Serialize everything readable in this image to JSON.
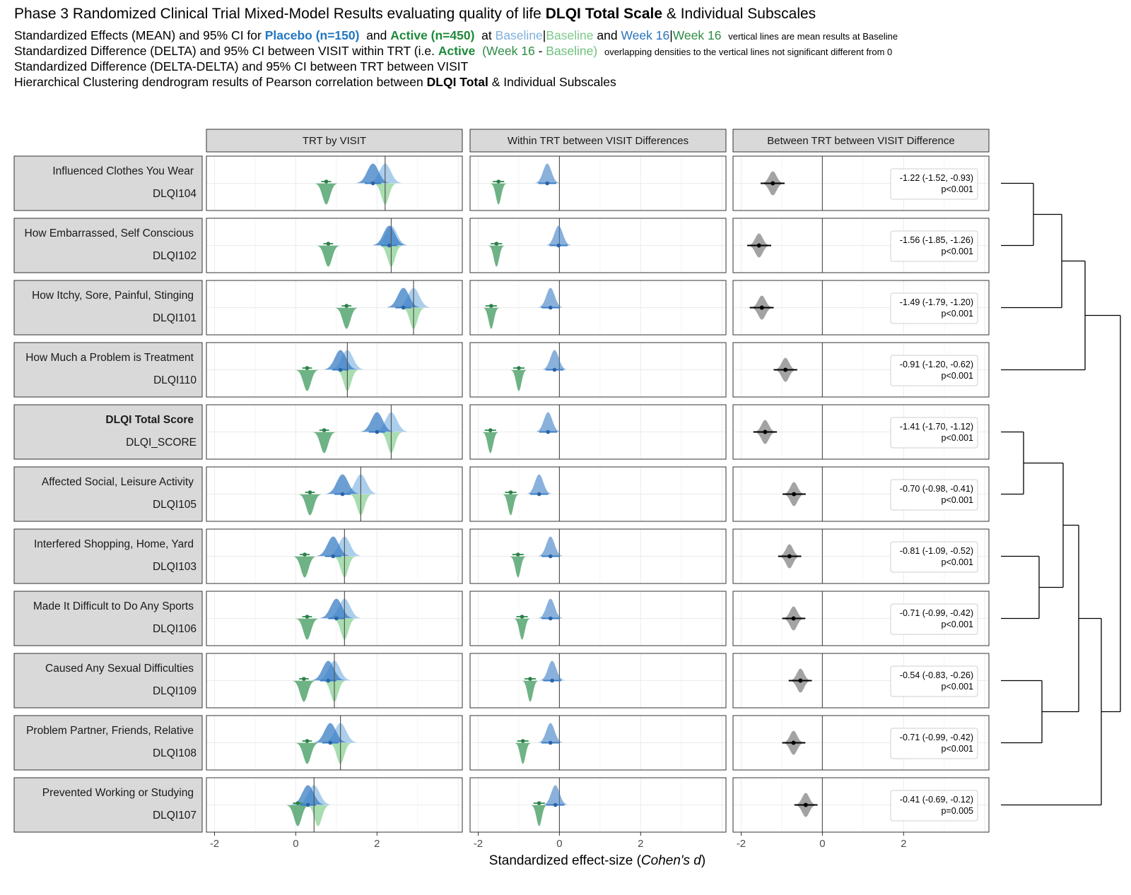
{
  "header": {
    "title_pre": "Phase 3 Randomized Clinical Trial Mixed-Model Results evaluating quality of life",
    "title_bold": "DLQI Total Scale",
    "title_post": "& Individual Subscales",
    "l2_a": "Standardized Effects (MEAN) and 95% CI for",
    "l2_placebo": "Placebo (n=150)",
    "l2_and": "and",
    "l2_active": "Active (n=450)",
    "l2_at": "at",
    "l2_bl1": "Baseline",
    "l2_bar1": "|",
    "l2_bl2": "Baseline",
    "l2_and2": "and",
    "l2_w1": "Week 16",
    "l2_bar2": "|",
    "l2_w2": "Week 16",
    "l2_note": "vertical lines are mean results at Baseline",
    "l3_a": "Standardized Difference (DELTA) and 95% CI between VISIT within TRT (i.e.",
    "l3_active": "Active",
    "l3_paren1": "(Week 16",
    "l3_dash": "-",
    "l3_paren2": "Baseline)",
    "l3_note": "overlapping densities to the vertical lines not significant different from 0",
    "l4": "Standardized Difference (DELTA-DELTA) and 95% CI between TRT between VISIT",
    "l5_a": "Hierarchical Clustering dendrogram results of Pearson correlation between",
    "l5_bold": "DLQI Total",
    "l5_b": "& Individual Subscales"
  },
  "colors": {
    "placebo_w16": "#3a7dc4",
    "placebo_bl": "#9cc5ea",
    "active_w16": "#3e9a5c",
    "active_bl": "#9fd9a6",
    "diff": "#999999",
    "strip": "#d9d9d9"
  },
  "chart_data": {
    "type": "density-forest",
    "xlabel_pre": "Standardized effect-size (",
    "xlabel_italic": "Cohen's d",
    "xlabel_post": ")",
    "xlim": [
      -2.2,
      4.1
    ],
    "xticks": [
      -2,
      0,
      2
    ],
    "tick_labels": [
      "-2",
      "0",
      "2"
    ],
    "panels": [
      "TRT by VISIT",
      "Within TRT between VISIT Differences",
      "Between TRT between VISIT Difference"
    ],
    "rows": [
      {
        "label": "Influenced Clothes You Wear",
        "code": "DLQI104",
        "bold": false,
        "placebo_w16": 1.9,
        "placebo_bl": 2.2,
        "active_w16": 0.75,
        "active_bl": 2.2,
        "baseline_ref": 2.2,
        "placebo_delta": -0.3,
        "active_delta": -1.5,
        "diff": -1.22,
        "ci": [
          -1.52,
          -0.93
        ],
        "diff_label": "-1.22 (-1.52, -0.93)",
        "p": "p<0.001"
      },
      {
        "label": "How Embarrassed, Self Conscious",
        "code": "DLQI102",
        "bold": false,
        "placebo_w16": 2.3,
        "placebo_bl": 2.35,
        "active_w16": 0.8,
        "active_bl": 2.35,
        "baseline_ref": 2.35,
        "placebo_delta": -0.02,
        "active_delta": -1.55,
        "diff": -1.56,
        "ci": [
          -1.85,
          -1.26
        ],
        "diff_label": "-1.56 (-1.85, -1.26)",
        "p": "p<0.001"
      },
      {
        "label": "How Itchy, Sore, Painful, Stinging",
        "code": "DLQI101",
        "bold": false,
        "placebo_w16": 2.65,
        "placebo_bl": 2.9,
        "active_w16": 1.25,
        "active_bl": 2.9,
        "baseline_ref": 2.9,
        "placebo_delta": -0.22,
        "active_delta": -1.68,
        "diff": -1.49,
        "ci": [
          -1.79,
          -1.2
        ],
        "diff_label": "-1.49 (-1.79, -1.20)",
        "p": "p<0.001"
      },
      {
        "label": "How Much a Problem is Treatment",
        "code": "DLQI110",
        "bold": false,
        "placebo_w16": 1.1,
        "placebo_bl": 1.27,
        "active_w16": 0.28,
        "active_bl": 1.27,
        "baseline_ref": 1.27,
        "placebo_delta": -0.12,
        "active_delta": -1.0,
        "diff": -0.91,
        "ci": [
          -1.2,
          -0.62
        ],
        "diff_label": "-0.91 (-1.20, -0.62)",
        "p": "p<0.001"
      },
      {
        "label": "DLQI Total Score",
        "code": "DLQI_SCORE",
        "bold": true,
        "placebo_w16": 2.0,
        "placebo_bl": 2.35,
        "active_w16": 0.7,
        "active_bl": 2.35,
        "baseline_ref": 2.35,
        "placebo_delta": -0.28,
        "active_delta": -1.7,
        "diff": -1.41,
        "ci": [
          -1.7,
          -1.12
        ],
        "diff_label": "-1.41 (-1.70, -1.12)",
        "p": "p<0.001"
      },
      {
        "label": "Affected Social, Leisure Activity",
        "code": "DLQI105",
        "bold": false,
        "placebo_w16": 1.15,
        "placebo_bl": 1.6,
        "active_w16": 0.35,
        "active_bl": 1.6,
        "baseline_ref": 1.6,
        "placebo_delta": -0.5,
        "active_delta": -1.2,
        "diff": -0.7,
        "ci": [
          -0.98,
          -0.41
        ],
        "diff_label": "-0.70 (-0.98, -0.41)",
        "p": "p<0.001"
      },
      {
        "label": "Interfered Shopping, Home, Yard",
        "code": "DLQI103",
        "bold": false,
        "placebo_w16": 0.92,
        "placebo_bl": 1.2,
        "active_w16": 0.22,
        "active_bl": 1.2,
        "baseline_ref": 1.2,
        "placebo_delta": -0.22,
        "active_delta": -1.02,
        "diff": -0.81,
        "ci": [
          -1.09,
          -0.52
        ],
        "diff_label": "-0.81 (-1.09, -0.52)",
        "p": "p<0.001"
      },
      {
        "label": "Made It Difficult to Do Any Sports",
        "code": "DLQI106",
        "bold": false,
        "placebo_w16": 1.0,
        "placebo_bl": 1.2,
        "active_w16": 0.28,
        "active_bl": 1.2,
        "baseline_ref": 1.2,
        "placebo_delta": -0.22,
        "active_delta": -0.92,
        "diff": -0.71,
        "ci": [
          -0.99,
          -0.42
        ],
        "diff_label": "-0.71 (-0.99, -0.42)",
        "p": "p<0.001"
      },
      {
        "label": "Caused Any Sexual Difficulties",
        "code": "DLQI109",
        "bold": false,
        "placebo_w16": 0.8,
        "placebo_bl": 0.95,
        "active_w16": 0.2,
        "active_bl": 0.95,
        "baseline_ref": 0.95,
        "placebo_delta": -0.18,
        "active_delta": -0.72,
        "diff": -0.54,
        "ci": [
          -0.83,
          -0.26
        ],
        "diff_label": "-0.54 (-0.83, -0.26)",
        "p": "p<0.001"
      },
      {
        "label": "Problem Partner, Friends, Relative",
        "code": "DLQI108",
        "bold": false,
        "placebo_w16": 0.85,
        "placebo_bl": 1.1,
        "active_w16": 0.28,
        "active_bl": 1.1,
        "baseline_ref": 1.1,
        "placebo_delta": -0.22,
        "active_delta": -0.9,
        "diff": -0.71,
        "ci": [
          -0.99,
          -0.42
        ],
        "diff_label": "-0.71 (-0.99, -0.42)",
        "p": "p<0.001"
      },
      {
        "label": "Prevented Working or Studying",
        "code": "DLQI107",
        "bold": false,
        "placebo_w16": 0.3,
        "placebo_bl": 0.45,
        "active_w16": 0.05,
        "active_bl": 0.55,
        "baseline_ref": 0.45,
        "placebo_delta": -0.1,
        "active_delta": -0.5,
        "diff": -0.41,
        "ci": [
          -0.69,
          -0.12
        ],
        "diff_label": "-0.41 (-0.69, -0.12)",
        "p": "p=0.005"
      }
    ]
  }
}
